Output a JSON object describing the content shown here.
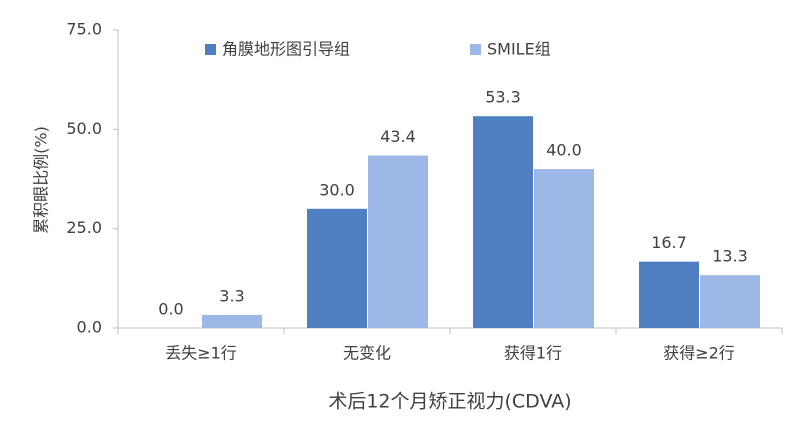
{
  "chart_data": {
    "type": "bar",
    "x_label": "术后12个月矫正视力(CDVA)",
    "y_label": "累积眼比例(%)",
    "categories": [
      "丢失≥1行",
      "无变化",
      "获得1行",
      "获得≥2行"
    ],
    "series": [
      {
        "name": "角膜地形图引导组",
        "color": "#4f7fc0",
        "values": [
          0,
          30,
          53.3,
          16.7
        ],
        "value_labels": [
          "0.0",
          "30.0",
          "53.3",
          "16.7"
        ]
      },
      {
        "name": "SMILE组",
        "color": "#9db8e6",
        "values": [
          3.3,
          43.4,
          40,
          13.3
        ],
        "value_labels": [
          "3.3",
          "43.4",
          "40.0",
          "13.3"
        ]
      }
    ],
    "ylim": [
      0,
      75
    ],
    "yticks": [
      {
        "value": 0,
        "label": "0.0"
      },
      {
        "value": 25,
        "label": "25.0"
      },
      {
        "value": 50,
        "label": "50.0"
      },
      {
        "value": 75,
        "label": "75.0"
      }
    ],
    "legend": "top"
  }
}
